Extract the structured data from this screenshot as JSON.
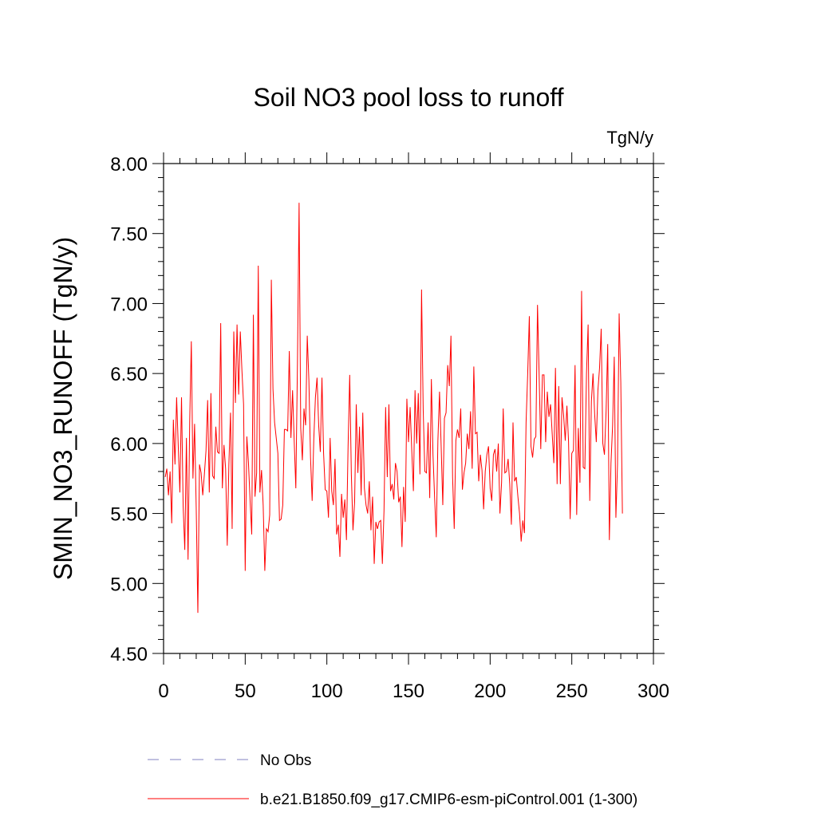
{
  "chart_data": {
    "type": "line",
    "title": "Soil NO3 pool loss to runoff",
    "units": "TgN/y",
    "xlabel": "",
    "ylabel": "SMIN_NO3_RUNOFF  (TgN/y)",
    "xlim": [
      0,
      300
    ],
    "ylim": [
      4.5,
      8.0
    ],
    "x_ticks": [
      0,
      50,
      100,
      150,
      200,
      250,
      300
    ],
    "x_tick_labels": [
      "0",
      "50",
      "100",
      "150",
      "200",
      "250",
      "300"
    ],
    "y_ticks": [
      4.5,
      5.0,
      5.5,
      6.0,
      6.5,
      7.0,
      7.5,
      8.0
    ],
    "y_tick_labels": [
      "4.50",
      "5.00",
      "5.50",
      "6.00",
      "6.50",
      "7.00",
      "7.50",
      "8.00"
    ],
    "legend": {
      "placement": "bottom",
      "entries": [
        {
          "label": "No Obs",
          "color": "#8080c0",
          "style": "dashed"
        },
        {
          "label": "b.e21.B1850.f09_g17.CMIP6-esm-piControl.001 (1-300)",
          "color": "#ff0000",
          "style": "solid"
        }
      ]
    },
    "series": [
      {
        "name": "b.e21.B1850.f09_g17.CMIP6-esm-piControl.001 (1-300)",
        "color": "#ff0000",
        "x_start": 1,
        "x_step": 1,
        "values": [
          5.76,
          5.82,
          5.63,
          5.8,
          5.43,
          6.17,
          5.85,
          6.33,
          5.98,
          5.65,
          6.33,
          5.55,
          5.24,
          6.04,
          5.17,
          6.15,
          6.73,
          5.75,
          6.14,
          5.54,
          4.79,
          5.85,
          5.79,
          5.63,
          5.78,
          5.95,
          6.31,
          5.65,
          6.36,
          5.77,
          5.75,
          6.12,
          5.94,
          5.93,
          6.86,
          5.68,
          5.99,
          5.82,
          5.27,
          5.85,
          6.22,
          5.39,
          6.8,
          6.29,
          6.85,
          6.35,
          6.8,
          6.52,
          6.28,
          5.09,
          6.05,
          5.86,
          5.59,
          5.35,
          6.92,
          5.62,
          5.79,
          7.27,
          5.65,
          5.81,
          5.56,
          5.09,
          5.39,
          5.37,
          5.49,
          7.17,
          6.39,
          6.15,
          6.04,
          5.93,
          5.45,
          5.46,
          5.56,
          6.1,
          6.1,
          6.09,
          6.66,
          6.04,
          6.38,
          6.02,
          5.68,
          6.58,
          7.72,
          6.11,
          5.88,
          6.25,
          6.13,
          6.77,
          6.45,
          5.9,
          5.59,
          6.03,
          6.33,
          6.47,
          6.13,
          5.94,
          6.47,
          5.93,
          5.67,
          5.66,
          5.47,
          6.04,
          5.66,
          5.56,
          5.89,
          5.35,
          5.42,
          5.19,
          5.64,
          5.47,
          5.6,
          5.31,
          5.98,
          6.49,
          5.78,
          5.38,
          5.58,
          6.28,
          5.79,
          6.12,
          5.63,
          6.22,
          5.68,
          5.56,
          5.5,
          5.73,
          5.38,
          5.62,
          5.14,
          5.44,
          5.39,
          5.44,
          5.45,
          5.14,
          5.52,
          6.26,
          5.76,
          6.28,
          5.66,
          5.71,
          5.6,
          5.86,
          5.8,
          5.58,
          5.62,
          5.26,
          5.69,
          5.44,
          6.32,
          6.01,
          6.26,
          5.95,
          5.66,
          6.38,
          6.0,
          6.36,
          5.78,
          7.1,
          6.24,
          5.8,
          5.79,
          6.15,
          5.61,
          6.46,
          5.92,
          5.61,
          5.33,
          6.02,
          6.37,
          5.98,
          5.56,
          6.18,
          6.22,
          6.56,
          6.41,
          6.77,
          5.76,
          5.39,
          6.02,
          6.1,
          6.04,
          6.25,
          5.67,
          5.79,
          5.86,
          6.07,
          5.96,
          6.23,
          5.82,
          6.55,
          6.07,
          6.08,
          5.73,
          5.92,
          5.81,
          5.53,
          5.8,
          5.92,
          5.98,
          5.68,
          5.59,
          5.92,
          5.96,
          5.8,
          6.0,
          5.5,
          5.72,
          6.25,
          5.79,
          5.8,
          5.89,
          5.71,
          5.42,
          6.15,
          5.73,
          5.76,
          5.62,
          5.5,
          5.3,
          5.45,
          5.36,
          6.15,
          6.5,
          6.91,
          5.98,
          5.9,
          6.03,
          6.05,
          6.99,
          6.49,
          5.96,
          6.49,
          6.49,
          6.01,
          6.37,
          6.19,
          6.28,
          6.07,
          5.86,
          6.54,
          5.71,
          6.41,
          5.71,
          6.33,
          6.2,
          6.02,
          6.27,
          6.02,
          5.46,
          5.93,
          5.95,
          6.56,
          5.49,
          6.11,
          5.72,
          7.09,
          5.83,
          5.82,
          6.5,
          6.85,
          5.59,
          6.3,
          6.5,
          6.21,
          6.01,
          6.38,
          6.54,
          6.82,
          6.0,
          5.92,
          6.23,
          6.71,
          5.31,
          5.86,
          6.13,
          6.62,
          5.47,
          5.85,
          6.93,
          6.44,
          5.5
        ]
      }
    ]
  }
}
